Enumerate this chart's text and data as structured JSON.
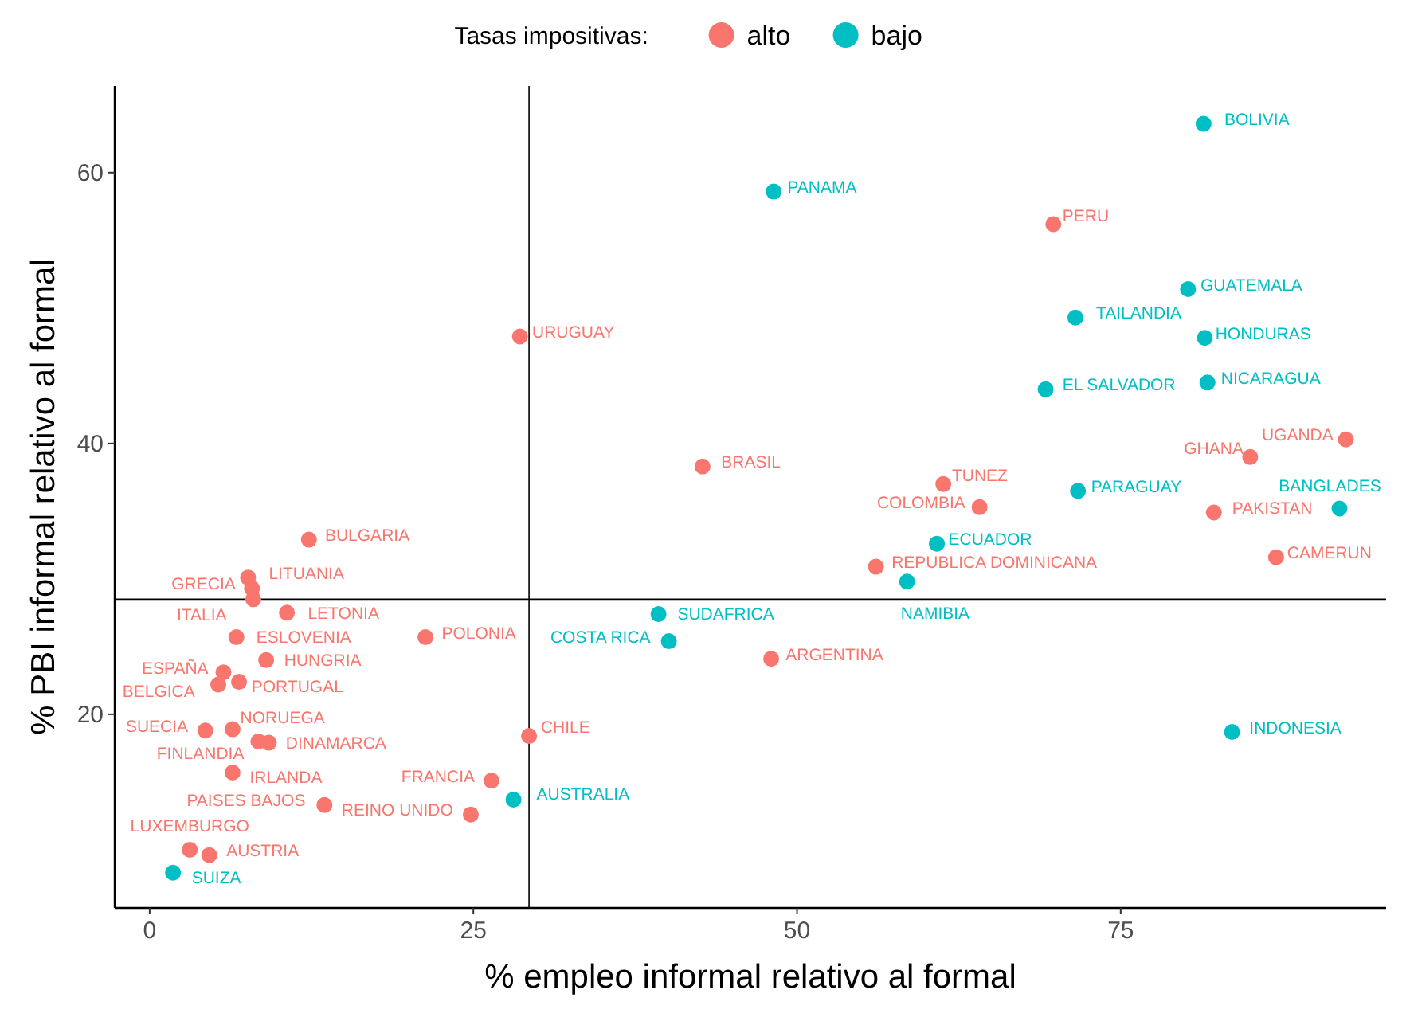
{
  "chart_data": {
    "type": "scatter",
    "xlabel": "% empleo informal relativo al formal",
    "ylabel": "% PBI informal relativo al formal",
    "legend_title": "Tasas impositivas:",
    "legend": "top",
    "grid": false,
    "marker": "circle",
    "xlim": [
      -2.7,
      95.5
    ],
    "ylim": [
      5.7,
      66.4
    ],
    "xticks": [
      0,
      25,
      50,
      75
    ],
    "yticks": [
      20,
      40,
      60
    ],
    "ref_lines": [
      {
        "axis": "x",
        "value": 29.3,
        "color": "#000000"
      },
      {
        "axis": "y",
        "value": 28.5,
        "color": "#000000"
      }
    ],
    "series": [
      {
        "name": "alto",
        "color": "#f8766d",
        "x": [
          12.3,
          7.6,
          7.9,
          8.0,
          10.6,
          6.7,
          9.0,
          5.7,
          5.3,
          6.9,
          21.3,
          6.4,
          4.3,
          9.2,
          8.4,
          6.4,
          13.5,
          3.1,
          4.6,
          26.4,
          24.8,
          29.3,
          28.6,
          42.7,
          61.3,
          64.1,
          56.1,
          48.0,
          69.8,
          92.4,
          85.0,
          82.2,
          87.0
        ],
        "values": [
          32.9,
          30.1,
          29.3,
          28.5,
          27.5,
          25.7,
          24.0,
          23.1,
          22.2,
          22.4,
          25.7,
          18.9,
          18.8,
          17.9,
          18.0,
          15.7,
          13.3,
          10.0,
          9.6,
          15.1,
          12.6,
          18.4,
          47.9,
          38.3,
          37.0,
          35.3,
          30.9,
          24.1,
          56.2,
          40.3,
          39.0,
          34.9,
          31.6
        ]
      },
      {
        "name": "bajo",
        "color": "#00bfc4",
        "x": [
          1.8,
          28.1,
          60.8,
          58.5,
          39.3,
          40.1,
          48.2,
          81.4,
          80.2,
          71.5,
          81.5,
          81.7,
          69.2,
          71.7,
          91.9,
          83.6
        ],
        "values": [
          8.3,
          13.7,
          32.6,
          29.8,
          27.4,
          25.4,
          58.6,
          63.6,
          51.4,
          49.3,
          47.8,
          44.5,
          44.0,
          36.5,
          35.2,
          18.7
        ]
      }
    ],
    "annotations": [
      {
        "text": "BULGARIA",
        "x": 12.3,
        "y": 32.9
      },
      {
        "text": "LITUANIA",
        "x": 7.6,
        "y": 30.1
      },
      {
        "text": "GRECIA",
        "x": 7.9,
        "y": 29.3
      },
      {
        "text": "ITALIA",
        "x": 8.0,
        "y": 28.5
      },
      {
        "text": "LETONIA",
        "x": 10.6,
        "y": 27.5
      },
      {
        "text": "ESLOVENIA",
        "x": 6.7,
        "y": 25.7
      },
      {
        "text": "HUNGRIA",
        "x": 9.0,
        "y": 24.0
      },
      {
        "text": "ESPAÑA",
        "x": 5.7,
        "y": 23.1
      },
      {
        "text": "BELGICA",
        "x": 5.3,
        "y": 22.2
      },
      {
        "text": "PORTUGAL",
        "x": 6.9,
        "y": 22.4
      },
      {
        "text": "POLONIA",
        "x": 21.3,
        "y": 25.7
      },
      {
        "text": "NORUEGA",
        "x": 6.4,
        "y": 18.9
      },
      {
        "text": "SUECIA",
        "x": 4.3,
        "y": 18.8
      },
      {
        "text": "DINAMARCA",
        "x": 9.2,
        "y": 17.9
      },
      {
        "text": "FINLANDIA",
        "x": 8.4,
        "y": 18.0
      },
      {
        "text": "IRLANDA",
        "x": 6.4,
        "y": 15.7
      },
      {
        "text": "PAISES BAJOS",
        "x": 13.5,
        "y": 13.3
      },
      {
        "text": "LUXEMBURGO",
        "x": 3.1,
        "y": 10.0
      },
      {
        "text": "AUSTRIA",
        "x": 4.6,
        "y": 9.6
      },
      {
        "text": "FRANCIA",
        "x": 26.4,
        "y": 15.1
      },
      {
        "text": "REINO UNIDO",
        "x": 24.8,
        "y": 12.6
      },
      {
        "text": "CHILE",
        "x": 29.3,
        "y": 18.4
      },
      {
        "text": "URUGUAY",
        "x": 28.6,
        "y": 47.9
      },
      {
        "text": "BRASIL",
        "x": 42.7,
        "y": 38.3
      },
      {
        "text": "TUNEZ",
        "x": 61.3,
        "y": 37.0
      },
      {
        "text": "COLOMBIA",
        "x": 64.1,
        "y": 35.3
      },
      {
        "text": "REPUBLICA DOMINICANA",
        "x": 56.1,
        "y": 30.9
      },
      {
        "text": "ARGENTINA",
        "x": 48.0,
        "y": 24.1
      },
      {
        "text": "PERU",
        "x": 69.8,
        "y": 56.2
      },
      {
        "text": "UGANDA",
        "x": 92.4,
        "y": 40.3
      },
      {
        "text": "GHANA",
        "x": 85.0,
        "y": 39.0
      },
      {
        "text": "PAKISTAN",
        "x": 82.2,
        "y": 34.9
      },
      {
        "text": "CAMERUN",
        "x": 87.0,
        "y": 31.6
      },
      {
        "text": "SUIZA",
        "x": 1.8,
        "y": 8.3
      },
      {
        "text": "AUSTRALIA",
        "x": 28.1,
        "y": 13.7
      },
      {
        "text": "ECUADOR",
        "x": 60.8,
        "y": 32.6
      },
      {
        "text": "NAMIBIA",
        "x": 58.5,
        "y": 29.8
      },
      {
        "text": "SUDAFRICA",
        "x": 39.3,
        "y": 27.4
      },
      {
        "text": "COSTA RICA",
        "x": 40.1,
        "y": 25.4
      },
      {
        "text": "PANAMA",
        "x": 48.2,
        "y": 58.6
      },
      {
        "text": "BOLIVIA",
        "x": 81.4,
        "y": 63.6
      },
      {
        "text": "GUATEMALA",
        "x": 80.2,
        "y": 51.4
      },
      {
        "text": "TAILANDIA",
        "x": 71.5,
        "y": 49.3
      },
      {
        "text": "HONDURAS",
        "x": 81.5,
        "y": 47.8
      },
      {
        "text": "NICARAGUA",
        "x": 81.7,
        "y": 44.5
      },
      {
        "text": "EL SALVADOR",
        "x": 69.2,
        "y": 44.0
      },
      {
        "text": "PARAGUAY",
        "x": 71.7,
        "y": 36.5
      },
      {
        "text": "BANGLADES",
        "x": 91.9,
        "y": 35.2
      },
      {
        "text": "INDONESIA",
        "x": 83.6,
        "y": 18.7
      }
    ]
  }
}
